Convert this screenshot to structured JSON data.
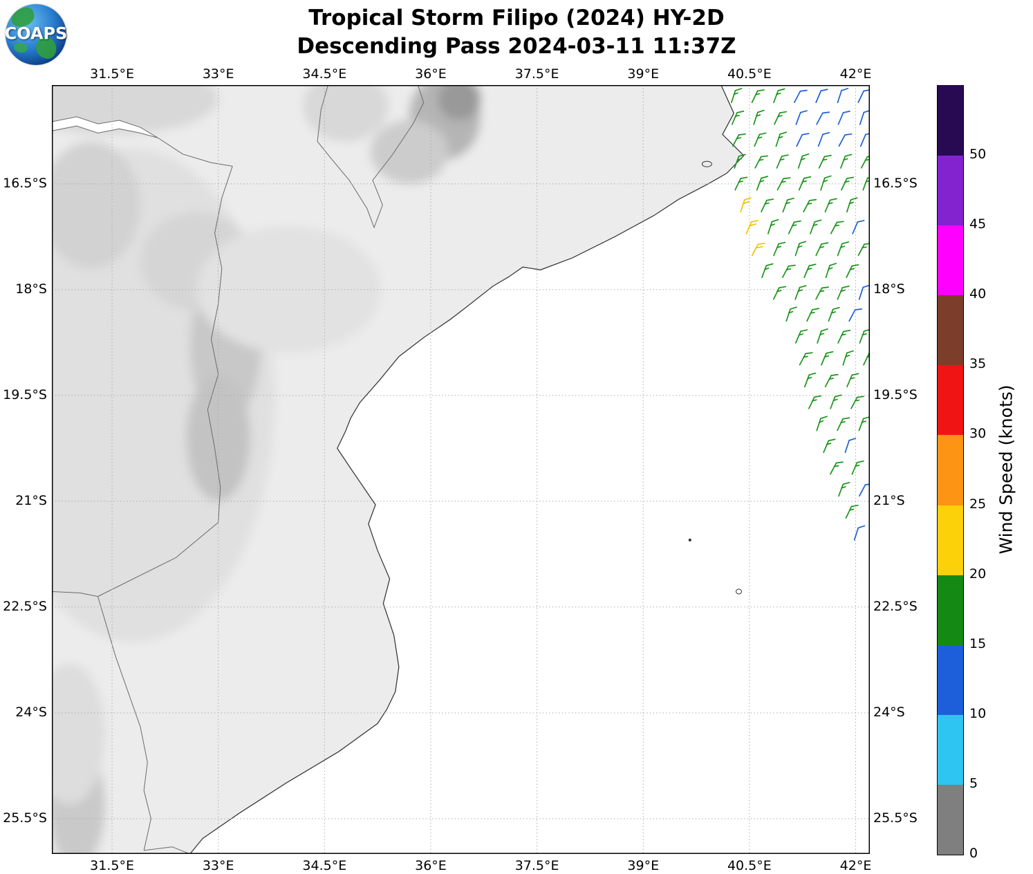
{
  "header": {
    "title_line1": "Tropical Storm Filipo (2024) HY-2D",
    "title_line2": "Descending Pass 2024-03-11 11:37Z",
    "logo_text": "COAPS"
  },
  "chart_data": {
    "type": "scatter",
    "subtype": "satellite_wind_barb_swath_map",
    "title": "Tropical Storm Filipo (2024) HY-2D",
    "subtitle": "Descending Pass 2024-03-11 11:37Z",
    "projection": {
      "lon_min": 30.65,
      "lon_max": 42.2,
      "lat_min": 15.1,
      "lat_max": 26.0
    },
    "x_axis": {
      "ticks": [
        {
          "lon": 31.5,
          "label": "31.5°E"
        },
        {
          "lon": 33.0,
          "label": "33°E"
        },
        {
          "lon": 34.5,
          "label": "34.5°E"
        },
        {
          "lon": 36.0,
          "label": "36°E"
        },
        {
          "lon": 37.5,
          "label": "37.5°E"
        },
        {
          "lon": 39.0,
          "label": "39°E"
        },
        {
          "lon": 40.5,
          "label": "40.5°E"
        },
        {
          "lon": 42.0,
          "label": "42°E"
        }
      ]
    },
    "y_axis": {
      "ticks": [
        {
          "lat": 16.5,
          "label": "16.5°S"
        },
        {
          "lat": 18.0,
          "label": "18°S"
        },
        {
          "lat": 19.5,
          "label": "19.5°S"
        },
        {
          "lat": 21.0,
          "label": "21°S"
        },
        {
          "lat": 22.5,
          "label": "22.5°S"
        },
        {
          "lat": 24.0,
          "label": "24°S"
        },
        {
          "lat": 25.5,
          "label": "25.5°S"
        }
      ]
    },
    "colorbar": {
      "label": "Wind Speed (knots)",
      "units": "knots",
      "tick_labels": [
        "0",
        "5",
        "10",
        "15",
        "20",
        "25",
        "30",
        "35",
        "40",
        "45",
        "50"
      ],
      "colors_bottom_to_top": [
        "#7f7f7f",
        "#2ec5f2",
        "#1d5fdb",
        "#148a14",
        "#fdd10a",
        "#fd9413",
        "#f01414",
        "#7c3d2a",
        "#ff00ff",
        "#8223cf",
        "#270a52"
      ]
    },
    "wind_barbs": {
      "lat_start": 15.28,
      "lat_step": 0.31,
      "rows": 21,
      "lon_step": 0.3,
      "lon_end": 42.15,
      "left_edge": [
        [
          15.2,
          40.25
        ],
        [
          16.6,
          40.32
        ],
        [
          17.6,
          40.6
        ],
        [
          18.6,
          41.15
        ],
        [
          19.6,
          41.35
        ],
        [
          20.6,
          41.68
        ],
        [
          21.65,
          42.05
        ]
      ],
      "colors": {
        "green": "#1b941b",
        "blue": "#1e5ed6",
        "yellow": "#f2c300"
      },
      "legend": {
        "blue": "10-15 kt",
        "green": "15-20 kt",
        "yellow": "20-25 kt"
      },
      "blue_block": {
        "max_lat": 15.95,
        "min_lon": 41.05
      },
      "blue_cells": [
        [
          42.05,
          17.25
        ],
        [
          42.1,
          18.05
        ],
        [
          41.95,
          18.45
        ],
        [
          42.0,
          20.15
        ],
        [
          42.1,
          20.8
        ],
        [
          42.05,
          21.5
        ]
      ],
      "yellow_cells": [
        [
          40.45,
          16.9
        ],
        [
          40.5,
          17.2
        ],
        [
          40.58,
          17.5
        ]
      ],
      "base_rotation_deg": 12
    },
    "map": {
      "land_color": "#ececec",
      "coast_color": "#3a3a3a",
      "border_color": "#6a6a6a",
      "grid_color": "#ababab",
      "coastline": [
        [
          40.1,
          15.1
        ],
        [
          40.28,
          15.5
        ],
        [
          40.12,
          15.8
        ],
        [
          40.42,
          16.1
        ],
        [
          40.18,
          16.35
        ],
        [
          39.92,
          16.5
        ],
        [
          39.5,
          16.72
        ],
        [
          39.15,
          16.95
        ],
        [
          38.6,
          17.25
        ],
        [
          38.0,
          17.55
        ],
        [
          37.55,
          17.72
        ],
        [
          37.3,
          17.68
        ],
        [
          37.1,
          17.82
        ],
        [
          36.88,
          17.95
        ],
        [
          36.5,
          18.25
        ],
        [
          36.28,
          18.42
        ],
        [
          35.9,
          18.68
        ],
        [
          35.55,
          18.95
        ],
        [
          35.28,
          19.28
        ],
        [
          35.0,
          19.6
        ],
        [
          34.87,
          19.82
        ],
        [
          34.8,
          20.0
        ],
        [
          34.68,
          20.25
        ],
        [
          34.88,
          20.55
        ],
        [
          35.05,
          20.8
        ],
        [
          35.22,
          21.05
        ],
        [
          35.12,
          21.32
        ],
        [
          35.25,
          21.7
        ],
        [
          35.42,
          22.1
        ],
        [
          35.33,
          22.45
        ],
        [
          35.48,
          22.9
        ],
        [
          35.55,
          23.35
        ],
        [
          35.5,
          23.7
        ],
        [
          35.38,
          23.95
        ],
        [
          35.25,
          24.15
        ],
        [
          34.7,
          24.55
        ],
        [
          33.95,
          25.0
        ],
        [
          33.3,
          25.42
        ],
        [
          32.78,
          25.78
        ],
        [
          32.6,
          26.0
        ]
      ],
      "lake": [
        [
          30.65,
          15.62
        ],
        [
          31.0,
          15.55
        ],
        [
          31.3,
          15.65
        ],
        [
          31.6,
          15.6
        ],
        [
          31.9,
          15.7
        ],
        [
          32.15,
          15.85
        ],
        [
          31.9,
          15.78
        ],
        [
          31.6,
          15.72
        ],
        [
          31.3,
          15.78
        ],
        [
          31.0,
          15.68
        ],
        [
          30.65,
          15.75
        ]
      ],
      "borders": [
        [
          [
            34.55,
            15.1
          ],
          [
            34.45,
            15.45
          ],
          [
            34.4,
            15.9
          ],
          [
            34.6,
            16.15
          ],
          [
            34.85,
            16.45
          ],
          [
            35.1,
            16.85
          ],
          [
            35.2,
            17.12
          ],
          [
            35.32,
            16.8
          ],
          [
            35.18,
            16.45
          ],
          [
            35.45,
            16.1
          ],
          [
            35.75,
            15.65
          ],
          [
            35.9,
            15.35
          ],
          [
            35.82,
            15.1
          ]
        ],
        [
          [
            33.2,
            16.25
          ],
          [
            33.05,
            16.7
          ],
          [
            32.95,
            17.2
          ],
          [
            33.05,
            17.7
          ],
          [
            33.0,
            18.2
          ],
          [
            32.9,
            18.7
          ],
          [
            33.0,
            19.2
          ],
          [
            32.85,
            19.7
          ],
          [
            32.95,
            20.25
          ],
          [
            33.03,
            20.8
          ],
          [
            33.0,
            21.3
          ]
        ],
        [
          [
            33.0,
            21.3
          ],
          [
            32.4,
            21.8
          ],
          [
            31.3,
            22.35
          ]
        ],
        [
          [
            30.65,
            22.28
          ],
          [
            31.05,
            22.3
          ],
          [
            31.3,
            22.35
          ]
        ],
        [
          [
            31.3,
            22.35
          ],
          [
            31.55,
            23.2
          ],
          [
            31.9,
            24.2
          ],
          [
            32.0,
            24.7
          ],
          [
            31.95,
            25.1
          ],
          [
            32.05,
            25.5
          ],
          [
            31.95,
            25.95
          ]
        ],
        [
          [
            32.15,
            15.85
          ],
          [
            32.5,
            16.08
          ],
          [
            32.9,
            16.2
          ],
          [
            33.2,
            16.25
          ]
        ],
        [
          [
            31.95,
            25.95
          ],
          [
            32.35,
            25.9
          ],
          [
            32.6,
            26.0
          ]
        ]
      ],
      "islands": [
        {
          "lon": 39.9,
          "lat": 16.22,
          "rx": 7,
          "ry": 4,
          "fill": "none"
        },
        {
          "lon": 40.35,
          "lat": 22.28,
          "rx": 4,
          "ry": 3.5,
          "fill": "none"
        },
        {
          "lon": 39.66,
          "lat": 21.55,
          "rx": 1.6,
          "ry": 1.6,
          "fill": "#333333"
        }
      ],
      "terrain": [
        [
          31.8,
          19.5,
          2.0,
          3.5,
          "#e0e0e0"
        ],
        [
          31.5,
          15.3,
          1.5,
          0.5,
          "#d8d8d8"
        ],
        [
          33.1,
          18.8,
          0.5,
          1.1,
          "#c8c8c8"
        ],
        [
          33.0,
          20.1,
          0.45,
          0.9,
          "#c3c3c3"
        ],
        [
          32.7,
          17.6,
          0.8,
          0.7,
          "#d5d5d5"
        ],
        [
          36.2,
          15.55,
          0.5,
          0.6,
          "#b5b5b5"
        ],
        [
          36.4,
          15.3,
          0.3,
          0.3,
          "#999999"
        ],
        [
          35.7,
          16.05,
          0.55,
          0.45,
          "#cccccc"
        ],
        [
          34.8,
          15.4,
          0.6,
          0.5,
          "#d8d8d8"
        ],
        [
          31.2,
          16.8,
          0.7,
          0.9,
          "#d2d2d2"
        ],
        [
          31.0,
          25.3,
          0.4,
          0.9,
          "#c9c9c9"
        ],
        [
          30.9,
          24.3,
          0.5,
          1.0,
          "#dddddd"
        ],
        [
          34.0,
          18.0,
          1.3,
          0.9,
          "#e2e2e2"
        ]
      ]
    }
  }
}
